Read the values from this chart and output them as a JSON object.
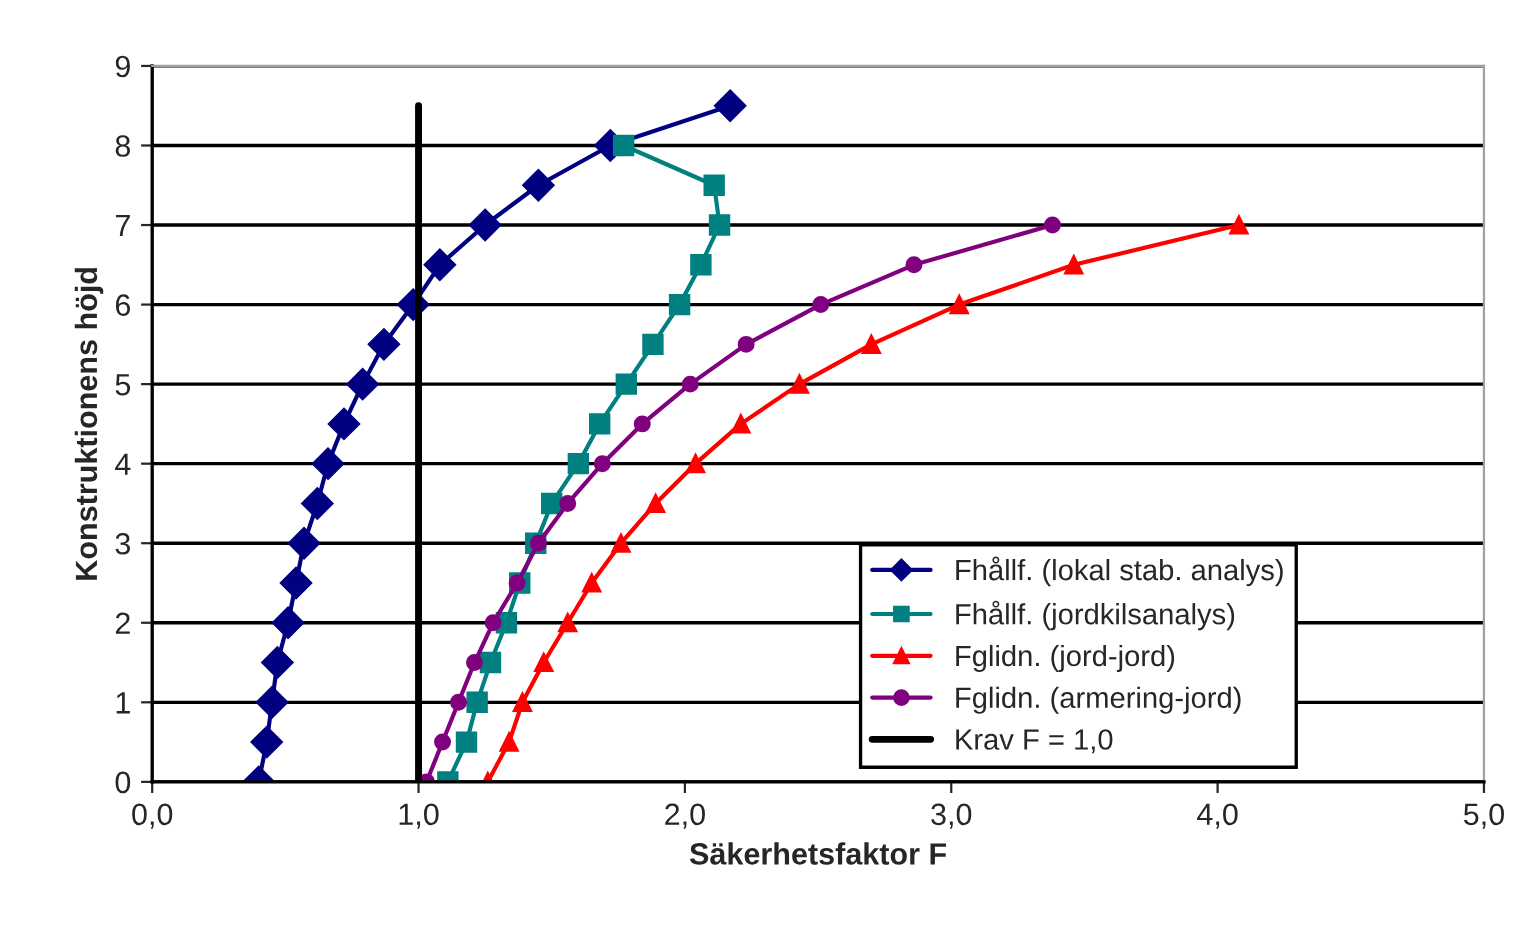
{
  "chart_data": {
    "type": "line",
    "xlabel": "Säkerhetsfaktor F",
    "ylabel": "Konstruktionens höjd",
    "xlim": [
      0,
      5
    ],
    "xticks": [
      {
        "value": 0,
        "label": "0,0"
      },
      {
        "value": 1,
        "label": "1,0"
      },
      {
        "value": 2,
        "label": "2,0"
      },
      {
        "value": 3,
        "label": "3,0"
      },
      {
        "value": 4,
        "label": "4,0"
      },
      {
        "value": 5,
        "label": "5,0"
      }
    ],
    "ylim": [
      0,
      9
    ],
    "yticks": [
      0,
      1,
      2,
      3,
      4,
      5,
      6,
      7,
      8,
      9
    ],
    "grid": "y",
    "legend": "bottom right",
    "series": [
      {
        "name": "Fhållf. (lokal stab. analys)",
        "color": "#000080",
        "marker": "diamond",
        "x": [
          0.4,
          0.43,
          0.45,
          0.47,
          0.51,
          0.54,
          0.57,
          0.62,
          0.66,
          0.72,
          0.79,
          0.87,
          0.98,
          1.08,
          1.25,
          1.45,
          1.72,
          2.17
        ],
        "values": [
          0,
          0.5,
          1,
          1.5,
          2,
          2.5,
          3,
          3.5,
          4,
          4.5,
          5,
          5.5,
          6,
          6.5,
          7,
          7.5,
          8,
          8.5
        ]
      },
      {
        "name": "Fhållf. (jordkilsanalys)",
        "color": "#008080",
        "marker": "square",
        "x": [
          1.11,
          1.18,
          1.22,
          1.27,
          1.33,
          1.38,
          1.44,
          1.5,
          1.6,
          1.68,
          1.78,
          1.88,
          1.98,
          2.06,
          2.13,
          2.11,
          1.77
        ],
        "values": [
          0,
          0.5,
          1,
          1.5,
          2,
          2.5,
          3,
          3.5,
          4,
          4.5,
          5,
          5.5,
          6,
          6.5,
          7,
          7.5,
          8
        ]
      },
      {
        "name": "Fglidn. (jord-jord)",
        "color": "#ff0000",
        "marker": "triangle",
        "x": [
          1.26,
          1.34,
          1.39,
          1.47,
          1.56,
          1.65,
          1.76,
          1.89,
          2.04,
          2.21,
          2.43,
          2.7,
          3.03,
          3.46,
          4.08
        ],
        "values": [
          0,
          0.5,
          1,
          1.5,
          2,
          2.5,
          3,
          3.5,
          4,
          4.5,
          5,
          5.5,
          6,
          6.5,
          7
        ]
      },
      {
        "name": "Fglidn. (armering-jord)",
        "color": "#800080",
        "marker": "circle",
        "x": [
          1.03,
          1.09,
          1.15,
          1.21,
          1.28,
          1.37,
          1.45,
          1.56,
          1.69,
          1.84,
          2.02,
          2.23,
          2.51,
          2.86,
          3.38
        ],
        "values": [
          0,
          0.5,
          1,
          1.5,
          2,
          2.5,
          3,
          3.5,
          4,
          4.5,
          5,
          5.5,
          6,
          6.5,
          7
        ]
      },
      {
        "name": "Krav F = 1,0",
        "color": "#000000",
        "marker": "none",
        "x": [
          1,
          1
        ],
        "values": [
          0,
          8.5
        ]
      }
    ]
  }
}
